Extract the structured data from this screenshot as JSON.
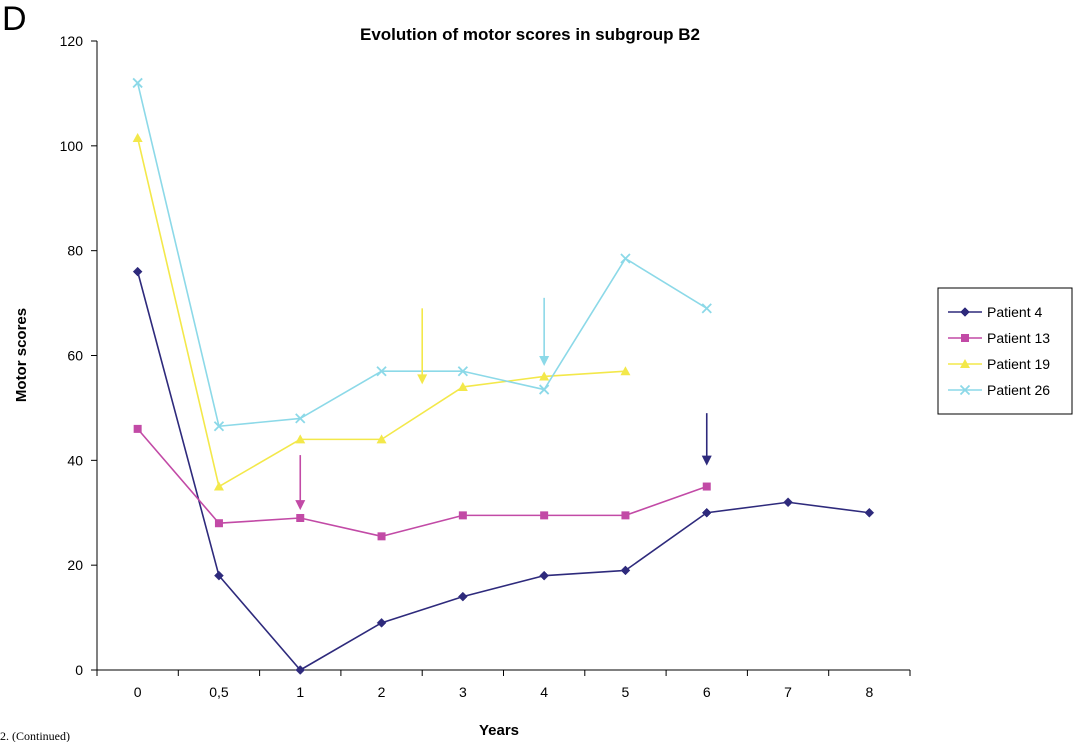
{
  "panel_letter": "D",
  "caption": "2.  (Continued)",
  "colors": {
    "patient_4": "#2e2a7c",
    "patient_13": "#c24aa6",
    "patient_19": "#f3e84a",
    "patient_26": "#8cd9e8",
    "axis": "#000000"
  },
  "chart_data": {
    "type": "line",
    "title": "Evolution of motor scores in subgroup B2",
    "xlabel": "Years",
    "ylabel": "Motor scores",
    "categories": [
      "0",
      "0,5",
      "1",
      "2",
      "3",
      "4",
      "5",
      "6",
      "7",
      "8"
    ],
    "ylim": [
      0,
      120
    ],
    "yticks": [
      0,
      20,
      40,
      60,
      80,
      100,
      120
    ],
    "grid": false,
    "legend_position": "right",
    "series": [
      {
        "name": "Patient 4",
        "marker": "diamond",
        "color": "#2e2a7c",
        "values": [
          76,
          18,
          0,
          9,
          14,
          18,
          19,
          30,
          32,
          30
        ]
      },
      {
        "name": "Patient 13",
        "marker": "square",
        "color": "#c24aa6",
        "values": [
          46,
          28,
          29,
          25.5,
          29.5,
          29.5,
          29.5,
          35,
          null,
          null
        ]
      },
      {
        "name": "Patient 19",
        "marker": "triangle",
        "color": "#f3e84a",
        "values": [
          101.5,
          35,
          44,
          44,
          54,
          56,
          57,
          null,
          null,
          null
        ]
      },
      {
        "name": "Patient 26",
        "marker": "cross",
        "color": "#8cd9e8",
        "values": [
          112,
          46.5,
          48,
          57,
          57,
          53.5,
          78.5,
          69,
          null,
          null
        ]
      }
    ],
    "annotations": [
      {
        "type": "arrow",
        "series": "Patient 4",
        "x": "6",
        "y_from": 49,
        "y_to": 39
      },
      {
        "type": "arrow",
        "series": "Patient 13",
        "x": "1",
        "y_from": 41,
        "y_to": 30.5
      },
      {
        "type": "arrow",
        "series": "Patient 19",
        "x": "2.5",
        "y_from": 69,
        "y_to": 54.5
      },
      {
        "type": "arrow",
        "series": "Patient 26",
        "x": "4",
        "y_from": 71,
        "y_to": 58
      }
    ]
  }
}
